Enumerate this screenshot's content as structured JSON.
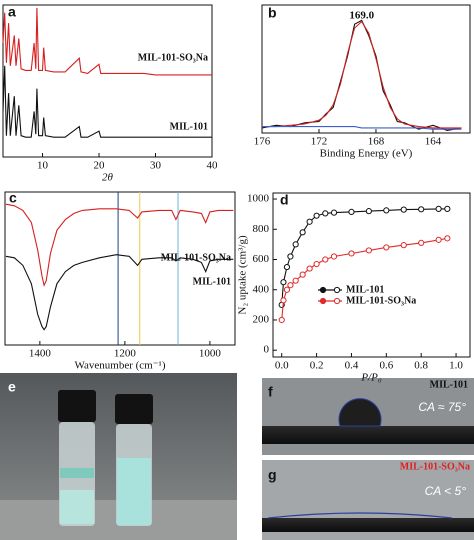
{
  "chart_data": [
    {
      "type": "line",
      "label": "a",
      "xlabel": "2θ",
      "xlim": [
        3,
        40
      ],
      "xticks": [
        10,
        20,
        30,
        40
      ],
      "ylim": [
        0,
        100
      ],
      "x": [
        3,
        3.3,
        3.6,
        4,
        4.3,
        5,
        5.3,
        5.8,
        6.2,
        7,
        8,
        8.5,
        8.8,
        9,
        9.3,
        10,
        10.2,
        10.5,
        12,
        14,
        16.5,
        16.8,
        18,
        20,
        20.3,
        22,
        25,
        28,
        30,
        33,
        36,
        40
      ],
      "series": [
        {
          "name": "MIL-101-SO₃Na",
          "color": "#d62020",
          "values": [
            75,
            95,
            62,
            88,
            60,
            80,
            60,
            78,
            58,
            57,
            57,
            75,
            58,
            98,
            57,
            57,
            72,
            57,
            56,
            56,
            65,
            56,
            55,
            61,
            55,
            55,
            55,
            55,
            54,
            54,
            54,
            54
          ]
        },
        {
          "name": "MIL-101",
          "color": "#111111",
          "values": [
            30,
            60,
            14,
            42,
            14,
            40,
            14,
            34,
            14,
            13,
            13,
            30,
            15,
            45,
            14,
            14,
            26,
            14,
            13,
            13,
            20,
            13,
            13,
            17,
            13,
            13,
            13,
            13,
            13,
            13,
            13,
            13
          ]
        }
      ]
    },
    {
      "type": "line",
      "label": "b",
      "xlabel": "Binding Energy (eV)",
      "xlim": [
        176,
        161.4
      ],
      "xticks": [
        176,
        172,
        168,
        164
      ],
      "ylim": [
        0,
        100
      ],
      "annotations": [
        {
          "text": "169.0",
          "x": 169.0
        }
      ],
      "x": [
        176,
        175,
        174,
        173,
        172,
        171.5,
        171,
        170.5,
        170,
        169.5,
        169,
        168.5,
        168,
        167.5,
        167,
        166.5,
        166,
        165,
        164,
        163,
        162
      ],
      "series": [
        {
          "color": "#111111",
          "values": [
            4,
            6,
            5,
            8,
            9,
            15,
            20,
            40,
            60,
            85,
            88,
            76,
            60,
            33,
            22,
            9,
            8,
            3,
            6,
            2,
            4
          ]
        },
        {
          "color": "#d62020",
          "values": [
            5,
            5,
            6,
            7,
            10,
            14,
            22,
            38,
            62,
            82,
            87,
            78,
            58,
            36,
            20,
            11,
            7,
            5,
            4,
            4,
            4
          ]
        },
        {
          "color": "#3a5fcd",
          "values": [
            5,
            5,
            5,
            5,
            5,
            5,
            5,
            5,
            5,
            5,
            4,
            4,
            4,
            4,
            4,
            4,
            4,
            4,
            3,
            3,
            3
          ]
        }
      ]
    },
    {
      "type": "line",
      "label": "c",
      "xlabel": "Wavenumber (cm⁻¹)",
      "xlim": [
        1482,
        941
      ],
      "xticks": [
        1400,
        1200,
        1000
      ],
      "ylim": [
        0,
        100
      ],
      "vlines": [
        {
          "value": 1216,
          "color": "#1f3d8c"
        },
        {
          "value": 1165,
          "color": "#f2c84b"
        },
        {
          "value": 1075,
          "color": "#6fb4d8"
        }
      ],
      "x": [
        1480,
        1460,
        1440,
        1420,
        1405,
        1395,
        1390,
        1385,
        1375,
        1360,
        1340,
        1320,
        1300,
        1260,
        1220,
        1190,
        1170,
        1160,
        1120,
        1090,
        1080,
        1070,
        1040,
        1020,
        1010,
        1000,
        980,
        945
      ],
      "series": [
        {
          "name": "MIL-101-SO₃Na",
          "color": "#d62020",
          "values": [
            92,
            91,
            88,
            80,
            62,
            45,
            39,
            42,
            60,
            75,
            82,
            86,
            88,
            89,
            89,
            88,
            83,
            87,
            88,
            88,
            82,
            88,
            87,
            86,
            80,
            87,
            88,
            88
          ]
        },
        {
          "name": "MIL-101",
          "color": "#111111",
          "values": [
            58,
            57,
            52,
            40,
            20,
            12,
            10,
            12,
            25,
            40,
            48,
            52,
            54,
            57,
            59,
            58,
            52,
            56,
            57,
            57,
            55,
            57,
            56,
            54,
            48,
            55,
            56,
            56
          ]
        }
      ]
    },
    {
      "type": "line",
      "markers": true,
      "label": "d",
      "xlabel": "P/P₀",
      "ylabel": "N₂ uptake (cm³/g)",
      "xlim": [
        -0.05,
        1.08
      ],
      "xticks": [
        {
          "value": 0,
          "label": "0.0"
        },
        0.2,
        0.4,
        0.6,
        0.8,
        {
          "value": 1,
          "label": "1.0"
        }
      ],
      "ylim": [
        -45,
        1040
      ],
      "yticks": [
        0,
        200,
        400,
        600,
        800,
        1000
      ],
      "x": [
        0,
        0.01,
        0.03,
        0.05,
        0.08,
        0.12,
        0.16,
        0.2,
        0.25,
        0.3,
        0.4,
        0.5,
        0.6,
        0.7,
        0.8,
        0.9,
        0.95
      ],
      "series": [
        {
          "name": "MIL-101",
          "color": "#111111",
          "values": [
            300,
            450,
            550,
            620,
            700,
            780,
            850,
            890,
            905,
            910,
            915,
            920,
            925,
            930,
            932,
            935,
            935
          ]
        },
        {
          "name": "MIL-101-SO₃Na",
          "color": "#e02a2a",
          "values": [
            200,
            330,
            400,
            430,
            460,
            500,
            540,
            570,
            600,
            620,
            640,
            660,
            680,
            695,
            710,
            730,
            740
          ]
        }
      ]
    }
  ],
  "images": [
    {
      "label": "e"
    },
    {
      "label": "f",
      "caption": "MIL-101",
      "annotation": "CA ≈ 75°"
    },
    {
      "label": "g",
      "caption": "MIL-101-SO₃Na",
      "annotation": "CA < 5°"
    }
  ]
}
